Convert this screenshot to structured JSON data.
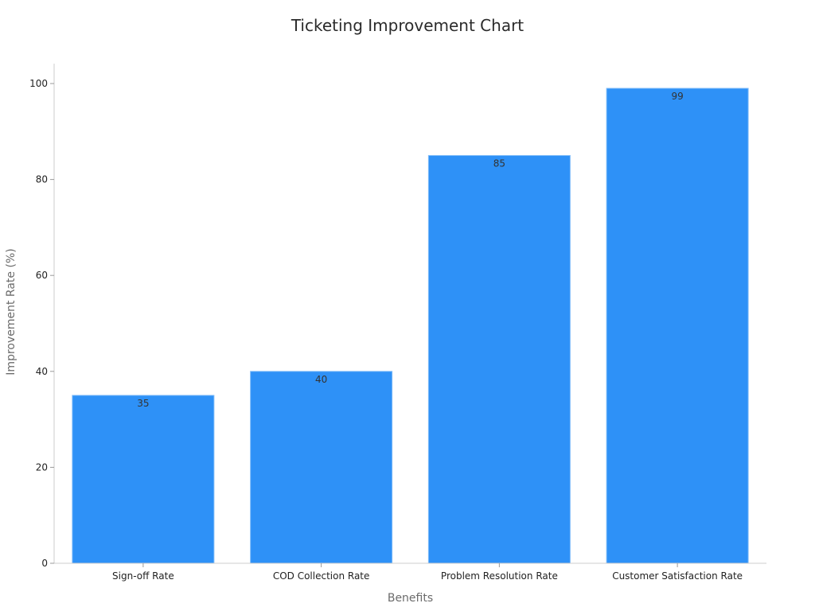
{
  "chart_data": {
    "type": "bar",
    "title": "Ticketing Improvement Chart",
    "xlabel": "Benefits",
    "ylabel": "Improvement Rate (%)",
    "categories": [
      "Sign-off Rate",
      "COD Collection Rate",
      "Problem Resolution Rate",
      "Customer Satisfaction Rate"
    ],
    "values": [
      35,
      40,
      85,
      99
    ],
    "data_labels": [
      "35",
      "40",
      "85",
      "99"
    ],
    "ylim": [
      0,
      104
    ],
    "yticks": [
      0,
      20,
      40,
      60,
      80,
      100
    ],
    "grid": false,
    "legend": "none",
    "bar_color": "#2e91f7",
    "axis_color": "#cccccc"
  }
}
